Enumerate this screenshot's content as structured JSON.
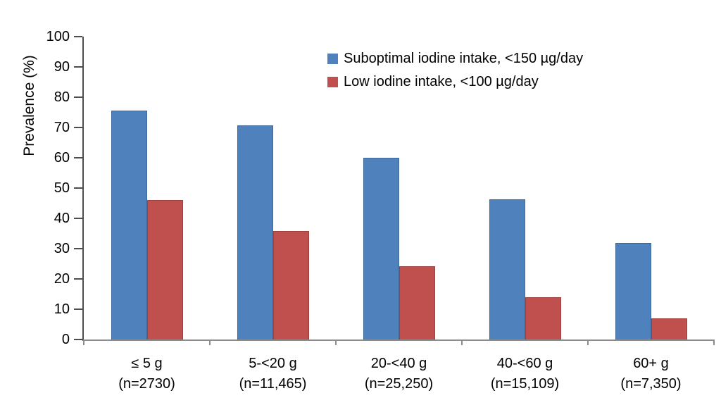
{
  "chart_data": {
    "type": "bar",
    "ylabel": "Prevalence (%)",
    "xlabel": "",
    "ylim": [
      0,
      100
    ],
    "yticks": [
      0,
      10,
      20,
      30,
      40,
      50,
      60,
      70,
      80,
      90,
      100
    ],
    "grid": false,
    "legend_position": "top-right",
    "categories": [
      "≤ 5 g",
      "5-<20 g",
      "20-<40 g",
      "40-<60 g",
      "60+ g"
    ],
    "category_sublabels": [
      "(n=2730)",
      "(n=11,465)",
      "(n=25,250)",
      "(n=15,109)",
      "(n=7,350)"
    ],
    "series": [
      {
        "name": "Suboptimal iodine intake, <150 µg/day",
        "color": "#4F81BD",
        "values": [
          75.5,
          70.7,
          60.0,
          46.2,
          31.9
        ]
      },
      {
        "name": "Low iodine intake, <100 µg/day",
        "color": "#C0504D",
        "values": [
          46.0,
          35.9,
          24.1,
          13.9,
          6.9
        ]
      }
    ],
    "colors": {
      "series_blue": "#4F81BD",
      "series_red": "#C0504D",
      "y_axis": "#4d4d4d",
      "x_axis": "#8c8c8c",
      "text": "#000000"
    }
  }
}
